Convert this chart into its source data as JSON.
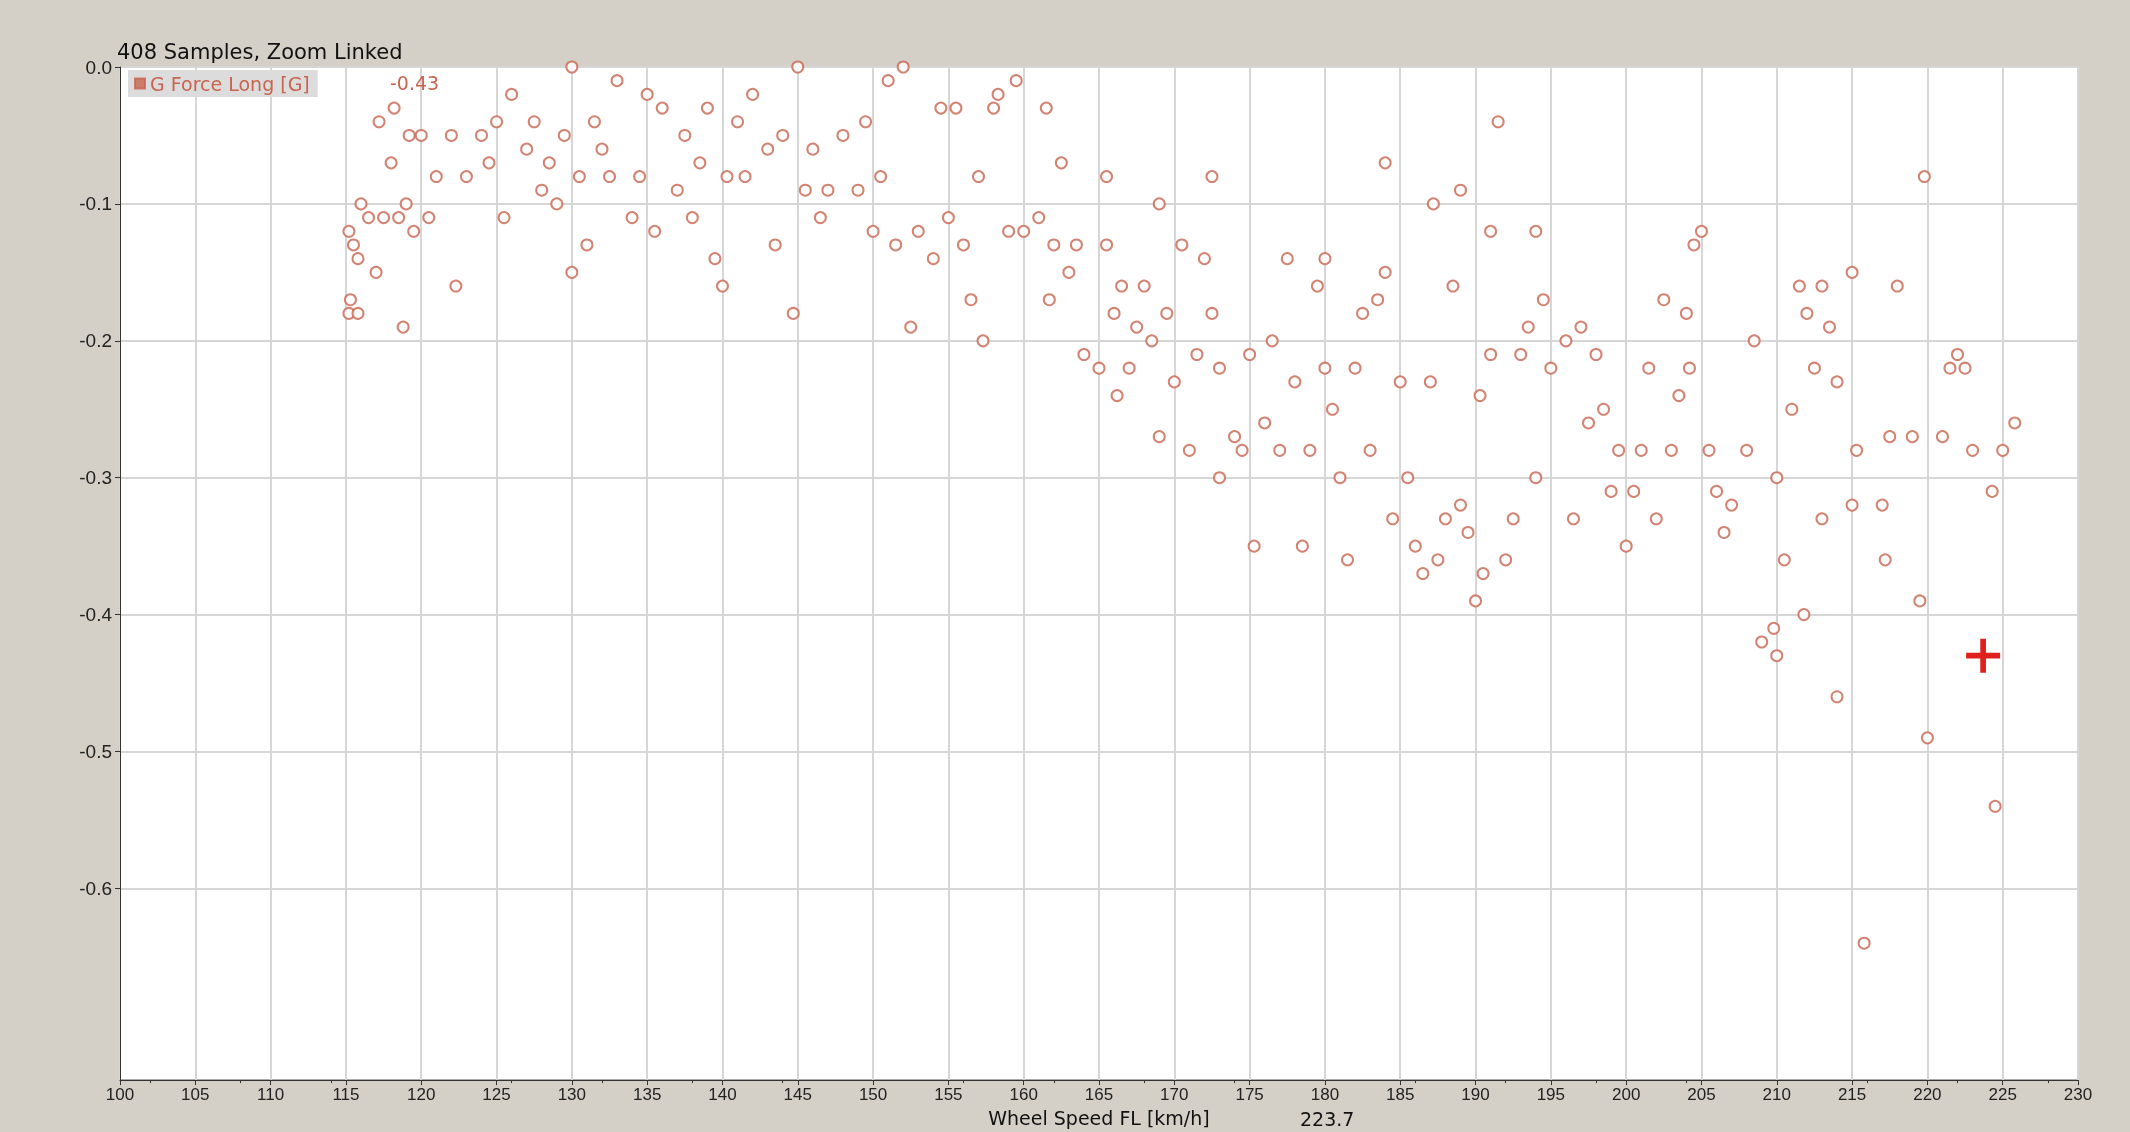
{
  "chart_data": {
    "type": "scatter",
    "title": "408 Samples, Zoom Linked",
    "xlabel": "Wheel Speed FL [km/h]",
    "annotations": [
      "-0.43",
      "223.7"
    ],
    "xlim": [
      100,
      230
    ],
    "xticks": [
      100,
      105,
      110,
      115,
      120,
      125,
      130,
      135,
      140,
      145,
      150,
      155,
      160,
      165,
      170,
      175,
      180,
      185,
      190,
      195,
      200,
      205,
      210,
      215,
      220,
      225,
      230
    ],
    "ylim": [
      -0.74,
      0
    ],
    "yticks": [
      {
        "value": 0,
        "label": "0.0"
      },
      -0.1,
      -0.2,
      -0.3,
      -0.4,
      -0.5,
      -0.6
    ],
    "grid": true,
    "legend": "top left",
    "marker": "circle",
    "series": [
      {
        "color": "#e0201c",
        "marker": "cross",
        "x": [
          223.7
        ],
        "values": [
          -0.43
        ]
      },
      {
        "name": "G Force Long [G]",
        "color": "#c8644f",
        "x": [
          115.2,
          115.5,
          115.8,
          115.3,
          115.2,
          115.8,
          116,
          116.5,
          117,
          117.5,
          118,
          118.5,
          119,
          119.2,
          119.5,
          120,
          120.5,
          118.8,
          117.2,
          118.2,
          121,
          122,
          122.3,
          123,
          124,
          124.5,
          125,
          125.5,
          126,
          127,
          127.5,
          128,
          128.5,
          129,
          129.5,
          130,
          130,
          130.5,
          131,
          131.5,
          132,
          132.5,
          133,
          134,
          134.5,
          135,
          135.5,
          136,
          137,
          137.5,
          138,
          138.5,
          139,
          139.5,
          140,
          140.3,
          141,
          141.5,
          142,
          143,
          143.5,
          144,
          144.7,
          145,
          145.5,
          146,
          146.5,
          147,
          148,
          149,
          149.5,
          150,
          150.5,
          151,
          151.5,
          152,
          152.5,
          153,
          154,
          154.5,
          155,
          155.5,
          156,
          156.5,
          157,
          157.3,
          158,
          158.3,
          159,
          159.5,
          160,
          161,
          161.5,
          161.7,
          162,
          162.5,
          163,
          163.5,
          164,
          165,
          165.5,
          165.5,
          166,
          166.2,
          166.5,
          167,
          167.5,
          168,
          168.5,
          169,
          169,
          169.5,
          170,
          170.5,
          171,
          171.5,
          172,
          172.5,
          172.5,
          173,
          173,
          174,
          174.5,
          175,
          175.3,
          176,
          176.5,
          177,
          177.5,
          178,
          178.5,
          179,
          179.5,
          180,
          180,
          180.5,
          181,
          181.5,
          182,
          182.5,
          183,
          183.5,
          184,
          184,
          184.5,
          185,
          185.5,
          186,
          186.5,
          187,
          187.2,
          187.5,
          188,
          188.5,
          189,
          189,
          189.5,
          190,
          190.3,
          190.5,
          191,
          191,
          191.5,
          192,
          192.5,
          193,
          193.5,
          194,
          194,
          194.5,
          195,
          196,
          196.5,
          197,
          197.5,
          198,
          198.5,
          199,
          199.5,
          200,
          200.5,
          201,
          201.5,
          202,
          202.5,
          203,
          203.5,
          204,
          204.2,
          204.5,
          205,
          205.5,
          206,
          206.5,
          207,
          208,
          208.5,
          209,
          209.8,
          210,
          210,
          210.5,
          211,
          211.5,
          211.8,
          212,
          212.5,
          213,
          213,
          213.5,
          214,
          214,
          215,
          215,
          215.3,
          215.8,
          217,
          217.2,
          217.5,
          218,
          219,
          219.5,
          219.8,
          220,
          221,
          221.5,
          222,
          222.5,
          223,
          224.3,
          224.5,
          225,
          225.8
        ],
        "values": [
          -0.12,
          -0.13,
          -0.14,
          -0.17,
          -0.18,
          -0.18,
          -0.1,
          -0.11,
          -0.15,
          -0.11,
          -0.07,
          -0.11,
          -0.1,
          -0.05,
          -0.12,
          -0.05,
          -0.11,
          -0.19,
          -0.04,
          -0.03,
          -0.08,
          -0.05,
          -0.16,
          -0.08,
          -0.05,
          -0.07,
          -0.04,
          -0.11,
          -0.02,
          -0.06,
          -0.04,
          -0.09,
          -0.07,
          -0.1,
          -0.05,
          -0.15,
          0,
          -0.08,
          -0.13,
          -0.04,
          -0.06,
          -0.08,
          -0.01,
          -0.11,
          -0.08,
          -0.02,
          -0.12,
          -0.03,
          -0.09,
          -0.05,
          -0.11,
          -0.07,
          -0.03,
          -0.14,
          -0.16,
          -0.08,
          -0.04,
          -0.08,
          -0.02,
          -0.06,
          -0.13,
          -0.05,
          -0.18,
          0,
          -0.09,
          -0.06,
          -0.11,
          -0.09,
          -0.05,
          -0.09,
          -0.04,
          -0.12,
          -0.08,
          -0.01,
          -0.13,
          0,
          -0.19,
          -0.12,
          -0.14,
          -0.03,
          -0.11,
          -0.03,
          -0.13,
          -0.17,
          -0.08,
          -0.2,
          -0.03,
          -0.02,
          -0.12,
          -0.01,
          -0.12,
          -0.11,
          -0.03,
          -0.17,
          -0.13,
          -0.07,
          -0.15,
          -0.13,
          -0.21,
          -0.22,
          -0.08,
          -0.13,
          -0.18,
          -0.24,
          -0.16,
          -0.22,
          -0.19,
          -0.16,
          -0.2,
          -0.27,
          -0.1,
          -0.18,
          -0.23,
          -0.13,
          -0.28,
          -0.21,
          -0.14,
          -0.08,
          -0.18,
          -0.3,
          -0.22,
          -0.27,
          -0.28,
          -0.21,
          -0.35,
          -0.26,
          -0.2,
          -0.28,
          -0.14,
          -0.23,
          -0.35,
          -0.28,
          -0.16,
          -0.14,
          -0.22,
          -0.25,
          -0.3,
          -0.36,
          -0.22,
          -0.18,
          -0.28,
          -0.17,
          -0.15,
          -0.07,
          -0.33,
          -0.23,
          -0.3,
          -0.35,
          -0.37,
          -0.23,
          -0.1,
          -0.36,
          -0.33,
          -0.16,
          -0.32,
          -0.09,
          -0.34,
          -0.39,
          -0.24,
          -0.37,
          -0.21,
          -0.12,
          -0.04,
          -0.36,
          -0.33,
          -0.21,
          -0.19,
          -0.3,
          -0.12,
          -0.17,
          -0.22,
          -0.2,
          -0.33,
          -0.19,
          -0.26,
          -0.21,
          -0.25,
          -0.31,
          -0.28,
          -0.35,
          -0.31,
          -0.28,
          -0.22,
          -0.33,
          -0.17,
          -0.28,
          -0.24,
          -0.18,
          -0.22,
          -0.13,
          -0.12,
          -0.28,
          -0.31,
          -0.34,
          -0.32,
          -0.28,
          -0.2,
          -0.42,
          -0.41,
          -0.43,
          -0.3,
          -0.36,
          -0.25,
          -0.16,
          -0.4,
          -0.18,
          -0.22,
          -0.33,
          -0.16,
          -0.19,
          -0.46,
          -0.23,
          -0.15,
          -0.32,
          -0.28,
          -0.64,
          -0.32,
          -0.36,
          -0.27,
          -0.16,
          -0.27,
          -0.39,
          -0.08,
          -0.49,
          -0.27,
          -0.22,
          -0.21,
          -0.22,
          -0.28,
          -0.31,
          -0.54,
          -0.28,
          -0.26
        ]
      }
    ]
  }
}
